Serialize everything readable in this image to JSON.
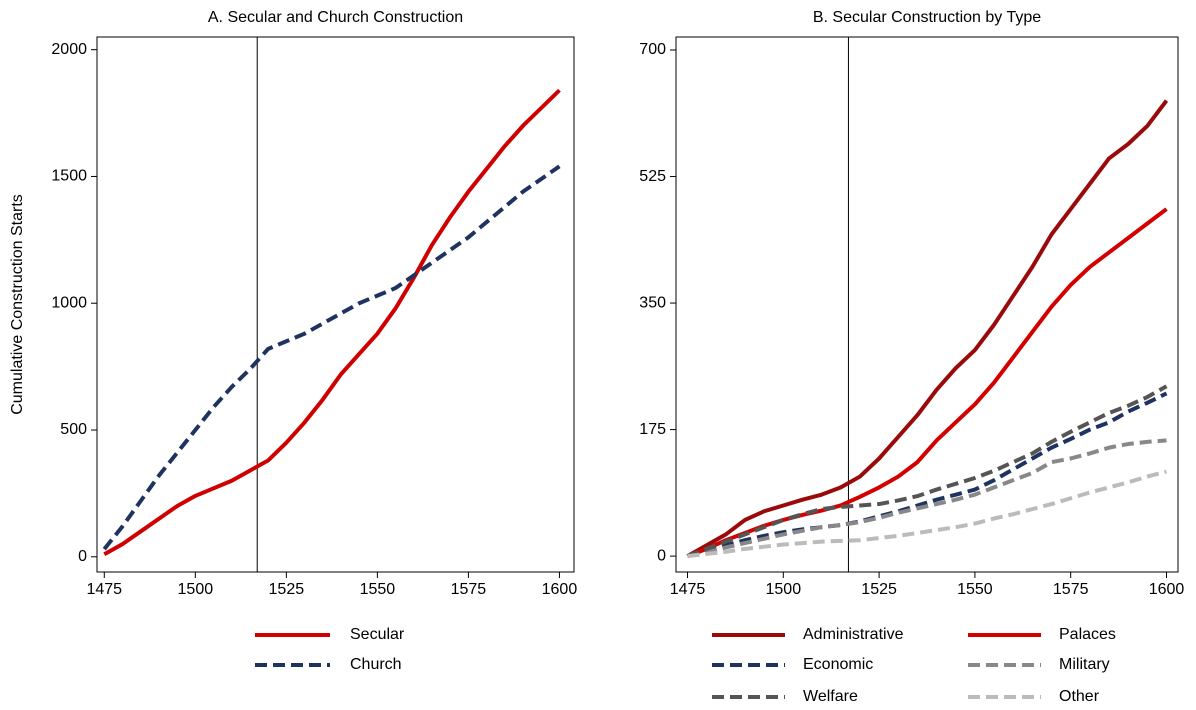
{
  "chart_data": [
    {
      "type": "line",
      "title": "A. Secular and Church Construction",
      "ylabel": "Cumulative Construction Starts",
      "x": [
        1475,
        1480,
        1485,
        1490,
        1495,
        1500,
        1505,
        1510,
        1515,
        1520,
        1525,
        1530,
        1535,
        1540,
        1545,
        1550,
        1555,
        1560,
        1565,
        1570,
        1575,
        1580,
        1585,
        1590,
        1595,
        1600
      ],
      "series": [
        {
          "name": "Secular",
          "color": "#d00000",
          "dash": false,
          "values": [
            10,
            50,
            100,
            150,
            200,
            240,
            270,
            300,
            340,
            380,
            450,
            530,
            620,
            720,
            800,
            880,
            980,
            1100,
            1230,
            1340,
            1440,
            1530,
            1620,
            1700,
            1770,
            1840
          ]
        },
        {
          "name": "Church",
          "color": "#1f3361",
          "dash": true,
          "values": [
            30,
            120,
            220,
            320,
            410,
            500,
            590,
            670,
            740,
            820,
            850,
            880,
            920,
            960,
            1000,
            1030,
            1060,
            1110,
            1160,
            1210,
            1260,
            1320,
            1380,
            1440,
            1490,
            1540
          ]
        }
      ],
      "xlim": [
        1473,
        1604
      ],
      "xticks": [
        1475,
        1500,
        1525,
        1550,
        1575,
        1600
      ],
      "ylim": [
        -60,
        2050
      ],
      "yticks": [
        0,
        500,
        1000,
        1500,
        2000
      ],
      "vline": 1517,
      "legend_columns": 1
    },
    {
      "type": "line",
      "title": "B. Secular Construction by Type",
      "x": [
        1475,
        1480,
        1485,
        1490,
        1495,
        1500,
        1505,
        1510,
        1515,
        1520,
        1525,
        1530,
        1535,
        1540,
        1545,
        1550,
        1555,
        1560,
        1565,
        1570,
        1575,
        1580,
        1585,
        1590,
        1595,
        1600
      ],
      "series": [
        {
          "name": "Administrative",
          "color": "#9b0a0a",
          "dash": false,
          "values": [
            0,
            15,
            30,
            50,
            62,
            70,
            78,
            85,
            95,
            110,
            135,
            165,
            195,
            230,
            260,
            285,
            320,
            360,
            400,
            445,
            480,
            515,
            550,
            570,
            595,
            630
          ]
        },
        {
          "name": "Palaces",
          "color": "#d40000",
          "dash": false,
          "values": [
            0,
            10,
            22,
            32,
            42,
            50,
            57,
            63,
            70,
            82,
            95,
            110,
            130,
            160,
            185,
            210,
            240,
            275,
            310,
            345,
            375,
            400,
            420,
            440,
            460,
            480
          ]
        },
        {
          "name": "Economic",
          "color": "#1f3361",
          "dash": true,
          "values": [
            0,
            8,
            15,
            22,
            28,
            33,
            37,
            40,
            43,
            48,
            55,
            62,
            70,
            78,
            85,
            92,
            105,
            120,
            135,
            150,
            162,
            175,
            185,
            200,
            212,
            225
          ]
        },
        {
          "name": "Military",
          "color": "#888888",
          "dash": true,
          "values": [
            0,
            5,
            12,
            18,
            24,
            30,
            35,
            40,
            43,
            47,
            53,
            60,
            66,
            72,
            78,
            85,
            95,
            105,
            115,
            130,
            135,
            142,
            150,
            155,
            158,
            160
          ]
        },
        {
          "name": "Welfare",
          "color": "#555555",
          "dash": true,
          "values": [
            0,
            10,
            20,
            30,
            40,
            50,
            58,
            65,
            68,
            70,
            72,
            77,
            83,
            92,
            100,
            108,
            118,
            130,
            142,
            158,
            172,
            185,
            198,
            208,
            220,
            235
          ]
        },
        {
          "name": "Other",
          "color": "#bbbbbb",
          "dash": true,
          "values": [
            0,
            3,
            6,
            10,
            13,
            16,
            18,
            20,
            21,
            22,
            25,
            28,
            32,
            36,
            40,
            45,
            52,
            58,
            65,
            72,
            80,
            88,
            95,
            102,
            110,
            117
          ]
        }
      ],
      "xlim": [
        1472,
        1603
      ],
      "xticks": [
        1475,
        1500,
        1525,
        1550,
        1575,
        1600
      ],
      "ylim": [
        -22,
        718
      ],
      "yticks": [
        0,
        175,
        350,
        525,
        700
      ],
      "vline": 1517,
      "legend_columns": 2
    }
  ]
}
